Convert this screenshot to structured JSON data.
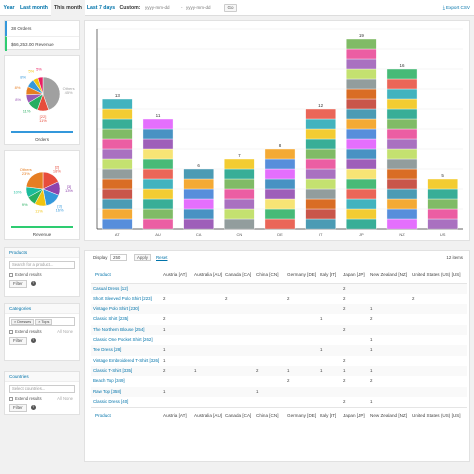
{
  "tabs": [
    {
      "label": "Year"
    },
    {
      "label": "Last month"
    },
    {
      "label": "This month"
    },
    {
      "label": "Last 7 days"
    }
  ],
  "custom": {
    "label": "Custom:",
    "from_placeholder": "yyyy-mm-dd",
    "sep": "-",
    "to_placeholder": "yyyy-mm-dd",
    "go_label": "Go"
  },
  "export_label": "Export CSV",
  "summary": [
    {
      "text": "38 Orders"
    },
    {
      "text": "$66,253.00 Revenue"
    }
  ],
  "pies": [
    {
      "title": "Orders",
      "slices": [
        {
          "label": "Others",
          "pct": "45%",
          "value": 45,
          "color": "#a0a0a0"
        },
        {
          "label": "[22]",
          "pct": "11%",
          "value": 11,
          "color": "#e74c3c"
        },
        {
          "label": "",
          "pct": "11%",
          "value": 11,
          "color": "#27ae60"
        },
        {
          "label": "",
          "pct": "8%",
          "value": 8,
          "color": "#9b59b6"
        },
        {
          "label": "",
          "pct": "8%",
          "value": 8,
          "color": "#e67e22"
        },
        {
          "label": "",
          "pct": "8%",
          "value": 8,
          "color": "#3498db"
        },
        {
          "label": "",
          "pct": "5%",
          "value": 5,
          "color": "#f1c40f"
        },
        {
          "label": "",
          "pct": "5%",
          "value": 5,
          "color": "#e91e63"
        }
      ]
    },
    {
      "title": "Revenue",
      "slices": [
        {
          "label": "[2]",
          "pct": "18%",
          "value": 18,
          "color": "#e74c3c"
        },
        {
          "label": "[3]",
          "pct": "13%",
          "value": 13,
          "color": "#8e44ad"
        },
        {
          "label": "[3]",
          "pct": "16%",
          "value": 16,
          "color": "#3498db"
        },
        {
          "label": "",
          "pct": "11%",
          "value": 11,
          "color": "#f1c40f"
        },
        {
          "label": "",
          "pct": "9%",
          "value": 9,
          "color": "#27ae60"
        },
        {
          "label": "",
          "pct": "10%",
          "value": 10,
          "color": "#1abc9c"
        },
        {
          "label": "Others",
          "pct": "23%",
          "value": 23,
          "color": "#e67e22"
        }
      ]
    }
  ],
  "products_panel": {
    "title": "Products",
    "search_placeholder": "Search for a product...",
    "extend_label": "Extend results",
    "filter_label": "Filter"
  },
  "categories_panel": {
    "title": "Categories",
    "tags": [
      "× Dresses",
      "× Tops"
    ],
    "extend_label": "Extend results",
    "filter_label": "Filter",
    "none_label": "All None"
  },
  "countries_panel": {
    "title": "Countries",
    "search_placeholder": "Select countries...",
    "extend_label": "Extend results",
    "filter_label": "Filter",
    "none_label": "All None"
  },
  "chart_data": {
    "type": "bar",
    "stacked": true,
    "categories": [
      "AT",
      "AU",
      "CA",
      "CN",
      "DE",
      "IT",
      "JP",
      "NZ",
      "US"
    ],
    "totals": [
      13,
      11,
      6,
      7,
      8,
      12,
      19,
      16,
      5
    ],
    "ylim": [
      0,
      20
    ],
    "grid": true,
    "segment_colors": [
      "#3a7bd5",
      "#e74c3c",
      "#9b59b6",
      "#f39c12",
      "#27ae60",
      "#e84393",
      "#2c8aa8",
      "#f6e05e",
      "#6ab04c",
      "#c0392b",
      "#8e44ad",
      "#16a085",
      "#d35400",
      "#2980b9",
      "#f1c40f",
      "#7f8c8d",
      "#e056fd",
      "#22a6b3",
      "#badc58"
    ]
  },
  "table": {
    "display_label": "Display",
    "display_value": "250",
    "apply_label": "Apply",
    "reset_label": "Reset",
    "items_count": "12 items",
    "columns": [
      "Product",
      "Austria [AT]",
      "Australia [AU]",
      "Canada [CA]",
      "China [CN]",
      "Germany [DE]",
      "Italy [IT]",
      "Japan [JP]",
      "New Zealand [NZ]",
      "United States (US) [US]"
    ],
    "rows": [
      [
        "Casual Dress [12]",
        "",
        "",
        "",
        "",
        "",
        "",
        "2",
        "",
        ""
      ],
      [
        "Short Sleeved Polo Shirt [223]",
        "2",
        "",
        "2",
        "",
        "2",
        "",
        "2",
        "",
        "2"
      ],
      [
        "Vintage Polo Shirt [230]",
        "",
        "",
        "",
        "",
        "",
        "",
        "2",
        "1",
        ""
      ],
      [
        "Classic Shirt [235]",
        "2",
        "",
        "",
        "",
        "",
        "1",
        "",
        "2",
        ""
      ],
      [
        "The Northern Blouse [254]",
        "1",
        "",
        "",
        "",
        "",
        "",
        "2",
        "",
        ""
      ],
      [
        "Classic One Pocket Shirt [262]",
        "",
        "",
        "",
        "",
        "",
        "",
        "",
        "1",
        ""
      ],
      [
        "Tee Dress [28]",
        "1",
        "",
        "",
        "",
        "",
        "1",
        "",
        "1",
        ""
      ],
      [
        "Vintage Embroidered T-Shirt [326]",
        "1",
        "",
        "",
        "",
        "",
        "",
        "2",
        "",
        ""
      ],
      [
        "Classic T-Shirt [335]",
        "2",
        "1",
        "",
        "2",
        "1",
        "1",
        "1",
        "1",
        ""
      ],
      [
        "Beach Top [349]",
        "",
        "",
        "",
        "",
        "2",
        "",
        "2",
        "2",
        ""
      ],
      [
        "Raw Top [358]",
        "1",
        "",
        "",
        "1",
        "",
        "",
        "",
        "",
        ""
      ],
      [
        "Classic Dress [40]",
        "",
        "",
        "",
        "",
        "",
        "",
        "2",
        "1",
        ""
      ]
    ]
  }
}
